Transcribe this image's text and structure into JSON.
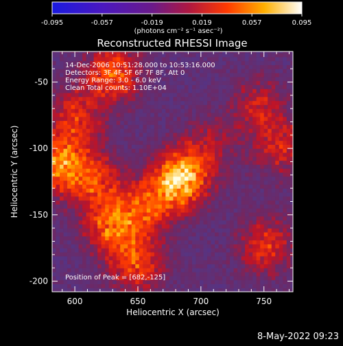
{
  "chart_data": {
    "type": "heatmap",
    "title": "Reconstructed RHESSI Image",
    "xlabel": "Heliocentric X (arcsec)",
    "ylabel": "Heliocentric Y (arcsec)",
    "xlim": [
      582,
      773
    ],
    "ylim": [
      -208,
      -27
    ],
    "x_ticks": [
      600,
      650,
      700,
      750
    ],
    "y_ticks": [
      -50,
      -100,
      -150,
      -200
    ],
    "info_lines": [
      "14-Dec-2006 10:51:28.000 to 10:53:16.000",
      "Detectors: 3F 4F 5F 6F 7F 8F, Att 0",
      "Energy Range: 3.0 - 6.0 keV",
      "Clean     Total counts: 1.10E+04"
    ],
    "peak_label": "Position of Peak = [682,-125]",
    "peak": [
      682,
      -125
    ],
    "colorbar": {
      "min": -0.095,
      "max": 0.095,
      "ticks": [
        "-0.095",
        "-0.057",
        "-0.019",
        "0.019",
        "0.057",
        "0.095"
      ],
      "units": "(photons cm⁻² s⁻¹ asec⁻²)"
    },
    "sources": [
      {
        "x": 682,
        "y": -125,
        "value": 0.095
      },
      {
        "x": 584,
        "y": -112,
        "value": 0.075
      },
      {
        "x": 629,
        "y": -45,
        "value": 0.06
      },
      {
        "x": 655,
        "y": -145,
        "value": 0.05
      },
      {
        "x": 613,
        "y": -125,
        "value": 0.05
      },
      {
        "x": 648,
        "y": -188,
        "value": 0.05
      },
      {
        "x": 750,
        "y": -175,
        "value": 0.045
      },
      {
        "x": 763,
        "y": -100,
        "value": 0.04
      },
      {
        "x": 744,
        "y": -70,
        "value": 0.035
      },
      {
        "x": 628,
        "y": -160,
        "value": 0.06
      },
      {
        "x": 600,
        "y": -78,
        "value": 0.045
      },
      {
        "x": 705,
        "y": -100,
        "value": 0.03
      }
    ],
    "grid": false,
    "colormap": "blue-purple-red-yellow-white"
  },
  "footer": {
    "date": "8-May-2022 09:23"
  },
  "colors": {
    "background": "#000000",
    "axis": "#ffffff",
    "low": "#2a12c8",
    "mid_neg": "#4a2a7d",
    "mid": "#5a3a80",
    "high": "#ff2a00",
    "peak": "#ffffd0"
  }
}
